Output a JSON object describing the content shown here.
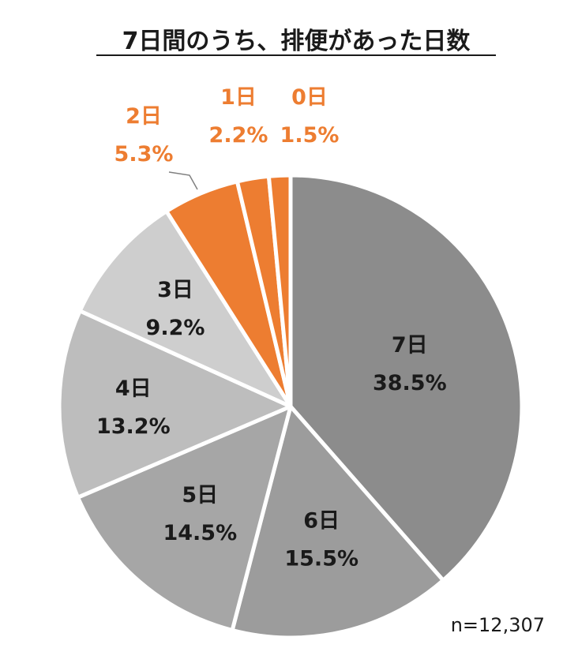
{
  "chart_data": {
    "type": "pie",
    "title": "7日間のうち、排便があった日数",
    "note": "n=12,307",
    "unit": "%",
    "slices": [
      {
        "label": "7日",
        "value": 38.5,
        "value_label": "38.5%",
        "color": "#8c8c8c"
      },
      {
        "label": "6日",
        "value": 15.5,
        "value_label": "15.5%",
        "color": "#9c9c9c"
      },
      {
        "label": "5日",
        "value": 14.5,
        "value_label": "14.5%",
        "color": "#a6a6a6"
      },
      {
        "label": "4日",
        "value": 13.2,
        "value_label": "13.2%",
        "color": "#bdbdbd"
      },
      {
        "label": "3日",
        "value": 9.2,
        "value_label": "9.2%",
        "color": "#cecece"
      },
      {
        "label": "2日",
        "value": 5.3,
        "value_label": "5.3%",
        "color": "#ed7d31"
      },
      {
        "label": "1日",
        "value": 2.2,
        "value_label": "2.2%",
        "color": "#ed7d31"
      },
      {
        "label": "0日",
        "value": 1.5,
        "value_label": "1.5%",
        "color": "#ed7d31"
      }
    ],
    "label_colors": {
      "inside": "#1a1a1a",
      "outside": "#ed7d31"
    },
    "legend": "none"
  }
}
